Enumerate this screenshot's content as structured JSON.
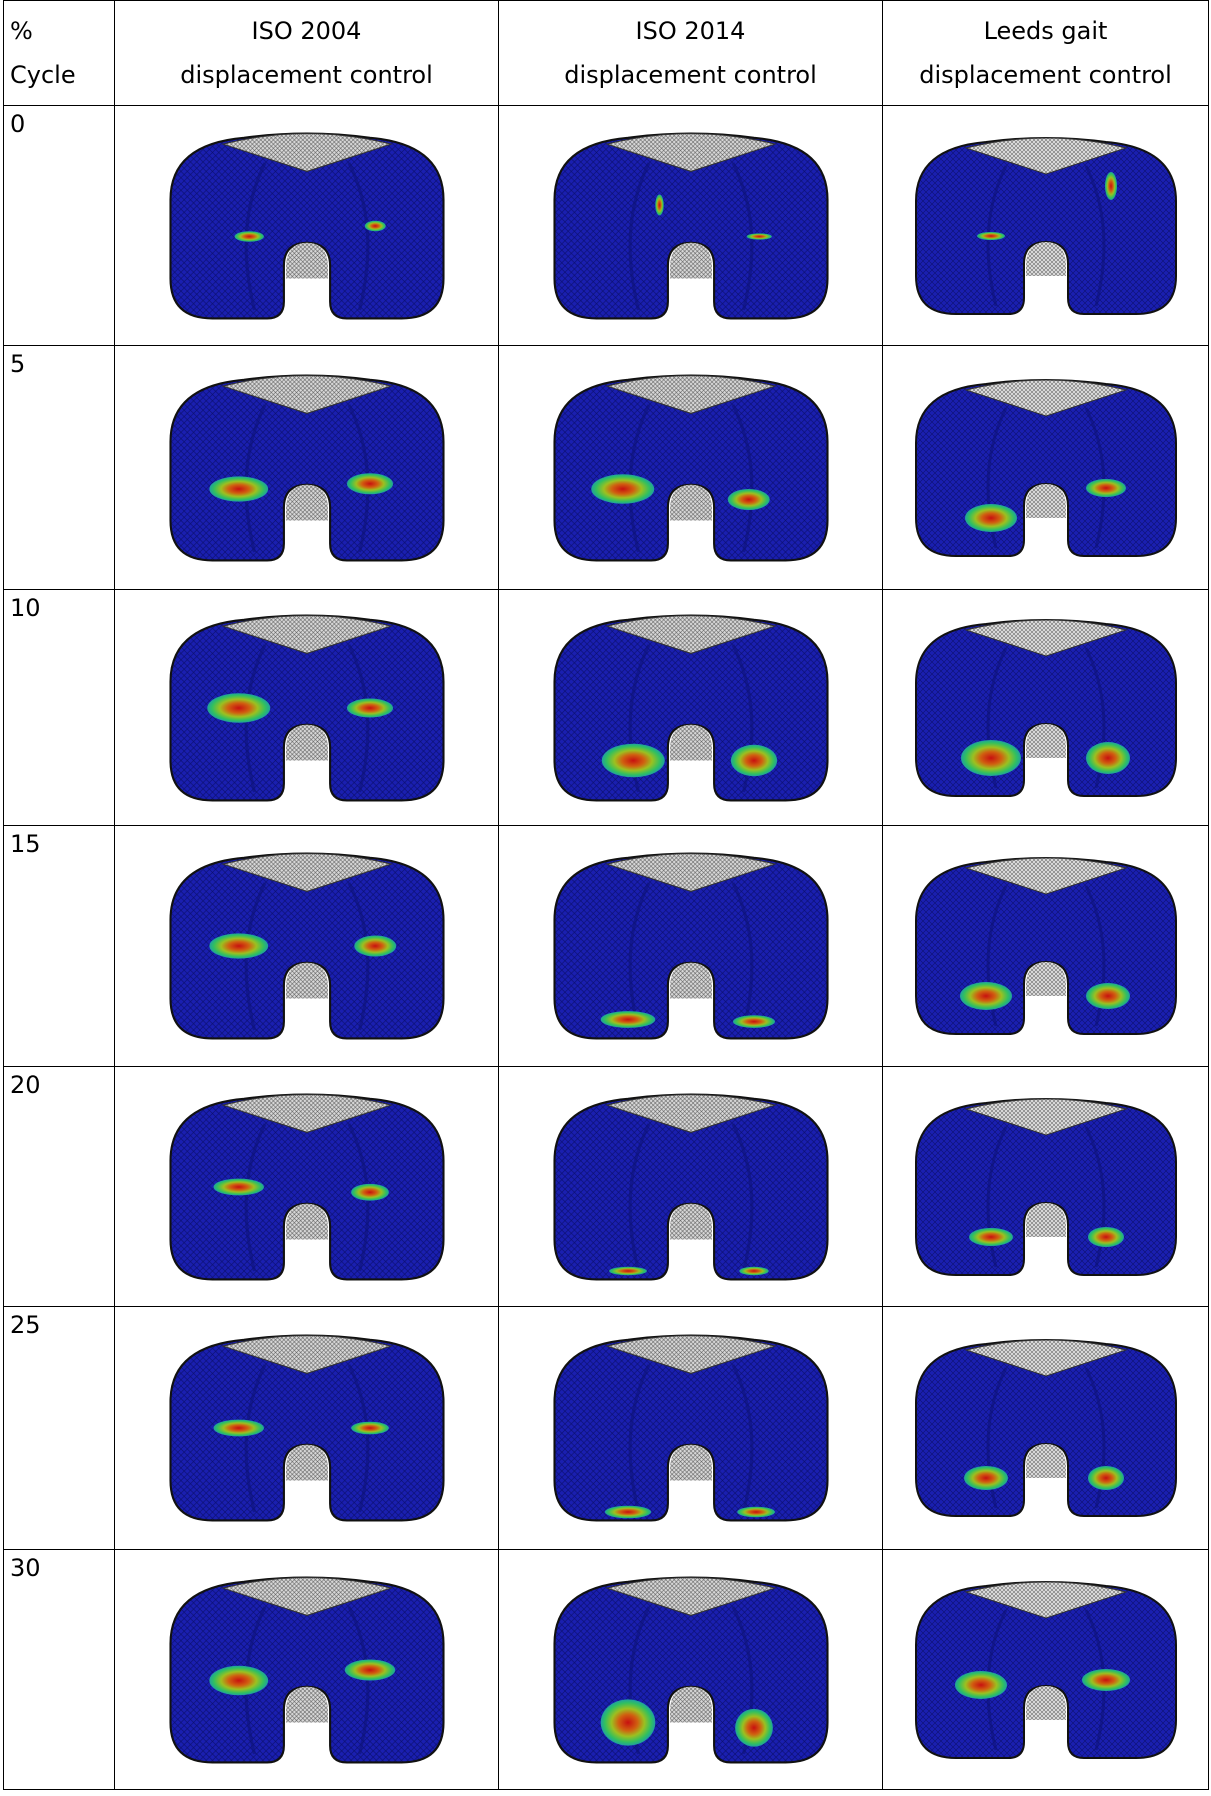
{
  "table": {
    "columns": [
      [
        "%",
        "Cycle"
      ],
      [
        "ISO 2004",
        "displacement control"
      ],
      [
        "ISO 2014",
        "displacement control"
      ],
      [
        "Leeds gait",
        "displacement control"
      ]
    ],
    "rows": [
      "0",
      "5",
      "10",
      "15",
      "20",
      "25",
      "30"
    ]
  }
}
